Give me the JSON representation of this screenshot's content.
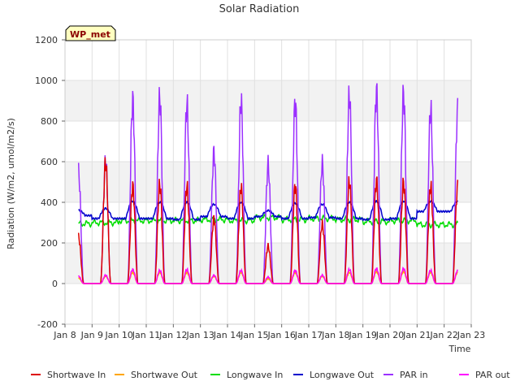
{
  "chart_data": {
    "type": "line",
    "title": "Solar Radiation",
    "site_label": "WP_met",
    "xlabel": "Time",
    "ylabel": "Radiation (W/m2, umol/m2/s)",
    "xlim": [
      8,
      23
    ],
    "ylim": [
      -200,
      1200
    ],
    "x_ticks": [
      {
        "value": 8,
        "label": "Jan 8"
      },
      {
        "value": 9,
        "label": "Jan 9"
      },
      {
        "value": 10,
        "label": "Jan 10"
      },
      {
        "value": 11,
        "label": "Jan 11"
      },
      {
        "value": 12,
        "label": "Jan 12"
      },
      {
        "value": 13,
        "label": "Jan 13"
      },
      {
        "value": 14,
        "label": "Jan 14"
      },
      {
        "value": 15,
        "label": "Jan 15"
      },
      {
        "value": 16,
        "label": "Jan 16"
      },
      {
        "value": 17,
        "label": "Jan 17"
      },
      {
        "value": 18,
        "label": "Jan 18"
      },
      {
        "value": 19,
        "label": "Jan 19"
      },
      {
        "value": 20,
        "label": "Jan 20"
      },
      {
        "value": 21,
        "label": "Jan 21"
      },
      {
        "value": 22,
        "label": "Jan 22"
      },
      {
        "value": 23,
        "label": "Jan 23"
      }
    ],
    "y_ticks": [
      -200,
      0,
      200,
      400,
      600,
      800,
      1000,
      1200
    ],
    "grid": true,
    "legend_position": "bottom",
    "series": [
      {
        "name": "Shortwave In",
        "color": "#dd0000",
        "daily_peaks": [
          250,
          650,
          520,
          530,
          520,
          350,
          515,
          200,
          525,
          320,
          545,
          550,
          540,
          520
        ]
      },
      {
        "name": "Shortwave Out",
        "color": "#ffa500",
        "daily_peaks": [
          30,
          40,
          60,
          60,
          60,
          40,
          60,
          25,
          60,
          40,
          60,
          65,
          65,
          60
        ]
      },
      {
        "name": "Longwave In",
        "color": "#00dd00",
        "daily_base": [
          295,
          300,
          310,
          310,
          310,
          315,
          310,
          325,
          315,
          320,
          315,
          305,
          310,
          290
        ]
      },
      {
        "name": "Longwave Out",
        "color": "#0000cc",
        "daily_base": [
          335,
          320,
          320,
          320,
          315,
          330,
          320,
          330,
          320,
          325,
          320,
          315,
          320,
          355
        ],
        "daily_peaks": [
          360,
          370,
          405,
          400,
          400,
          390,
          400,
          360,
          395,
          390,
          400,
          405,
          405,
          405
        ]
      },
      {
        "name": "PAR in",
        "color": "#9b30ff",
        "daily_peaks": [
          595,
          660,
          980,
          995,
          960,
          705,
          975,
          635,
          975,
          645,
          1005,
          1030,
          1015,
          930
        ]
      },
      {
        "name": "PAR out",
        "color": "#ff00ff",
        "daily_peaks": [
          40,
          45,
          75,
          70,
          75,
          45,
          70,
          35,
          70,
          45,
          75,
          80,
          80,
          70
        ]
      }
    ]
  }
}
